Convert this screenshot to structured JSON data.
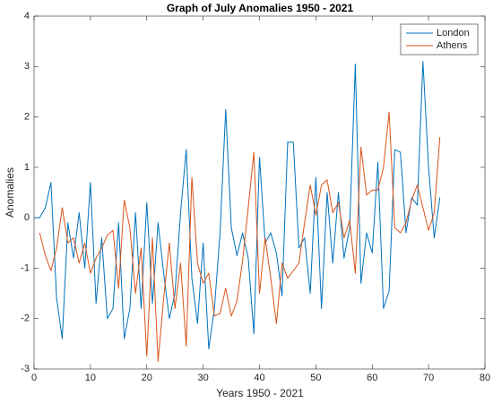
{
  "chart_data": {
    "type": "line",
    "title": "Graph of July Anomalies 1950 - 2021",
    "xlabel": "Years 1950 - 2021",
    "ylabel": "Anomalies",
    "xlim": [
      0,
      80
    ],
    "xticks": [
      0,
      10,
      20,
      30,
      40,
      50,
      60,
      70,
      80
    ],
    "ylim": [
      -3,
      4
    ],
    "yticks": [
      -3,
      -2,
      -1,
      0,
      1,
      2,
      3,
      4
    ],
    "legend": "northeast",
    "grid": false,
    "series": [
      {
        "name": "London",
        "color": "#0072bd",
        "x": [
          0,
          1,
          2,
          3,
          4,
          5,
          6,
          7,
          8,
          9,
          10,
          11,
          12,
          13,
          14,
          15,
          16,
          17,
          18,
          19,
          20,
          21,
          22,
          23,
          24,
          25,
          26,
          27,
          28,
          29,
          30,
          31,
          32,
          33,
          34,
          35,
          36,
          37,
          38,
          39,
          40,
          41,
          42,
          43,
          44,
          45,
          46,
          47,
          48,
          49,
          50,
          51,
          52,
          53,
          54,
          55,
          56,
          57,
          58,
          59,
          60,
          61,
          62,
          63,
          64,
          65,
          66,
          67,
          68,
          69,
          70,
          71,
          72
        ],
        "values": [
          0,
          0,
          0.2,
          0.7,
          -1.6,
          -2.4,
          -0.1,
          -0.8,
          0.1,
          -1.0,
          0.7,
          -1.7,
          -0.4,
          -2.0,
          -1.8,
          -0.1,
          -2.4,
          -1.8,
          0.1,
          -1.8,
          0.3,
          -1.7,
          -0.1,
          -1.1,
          -2.0,
          -1.5,
          0.1,
          1.35,
          -1.2,
          -2.1,
          -0.5,
          -2.6,
          -1.8,
          -0.3,
          2.15,
          -0.2,
          -0.75,
          -0.3,
          -0.8,
          -2.3,
          1.2,
          -0.5,
          -0.3,
          -0.7,
          -1.55,
          1.5,
          1.5,
          -0.6,
          -0.4,
          -1.5,
          0.8,
          -1.8,
          0.5,
          -0.9,
          0.5,
          -0.8,
          -0.2,
          3.05,
          -1.3,
          -0.3,
          -0.7,
          1.1,
          -1.8,
          -1.45,
          1.35,
          1.3,
          -0.3,
          0.4,
          0.25,
          3.1,
          1.0,
          -0.4,
          0.4
        ]
      },
      {
        "name": "Athens",
        "color": "#d95319",
        "x": [
          1,
          2,
          3,
          4,
          5,
          6,
          7,
          8,
          9,
          10,
          11,
          12,
          13,
          14,
          15,
          16,
          17,
          18,
          19,
          20,
          21,
          22,
          23,
          24,
          25,
          26,
          27,
          28,
          29,
          30,
          31,
          32,
          33,
          34,
          35,
          36,
          37,
          38,
          39,
          40,
          41,
          42,
          43,
          44,
          45,
          46,
          47,
          48,
          49,
          50,
          51,
          52,
          53,
          54,
          55,
          56,
          57,
          58,
          59,
          60,
          61,
          62,
          63,
          64,
          65,
          66,
          67,
          68,
          69,
          70,
          71,
          72
        ],
        "values": [
          -0.3,
          -0.75,
          -1.05,
          -0.6,
          0.2,
          -0.5,
          -0.4,
          -0.9,
          -0.5,
          -1.1,
          -0.8,
          -0.6,
          -0.35,
          -0.25,
          -1.4,
          0.35,
          -0.2,
          -1.5,
          -0.6,
          -2.75,
          -0.4,
          -2.85,
          -1.6,
          -0.5,
          -1.8,
          -0.9,
          -2.55,
          0.8,
          -0.9,
          -1.3,
          -1.1,
          -1.95,
          -1.9,
          -1.4,
          -1.95,
          -1.65,
          -0.85,
          0.2,
          1.3,
          -1.5,
          -0.4,
          -1.2,
          -2.1,
          -0.9,
          -1.2,
          -1.05,
          -0.9,
          -0.1,
          0.65,
          0.05,
          0.65,
          0.75,
          0.1,
          0.3,
          -0.4,
          -0.05,
          -1.1,
          1.4,
          0.45,
          0.55,
          0.55,
          1.0,
          2.1,
          -0.2,
          -0.3,
          -0.1,
          0.35,
          0.65,
          0.2,
          -0.25,
          0.1,
          1.6
        ]
      }
    ]
  }
}
